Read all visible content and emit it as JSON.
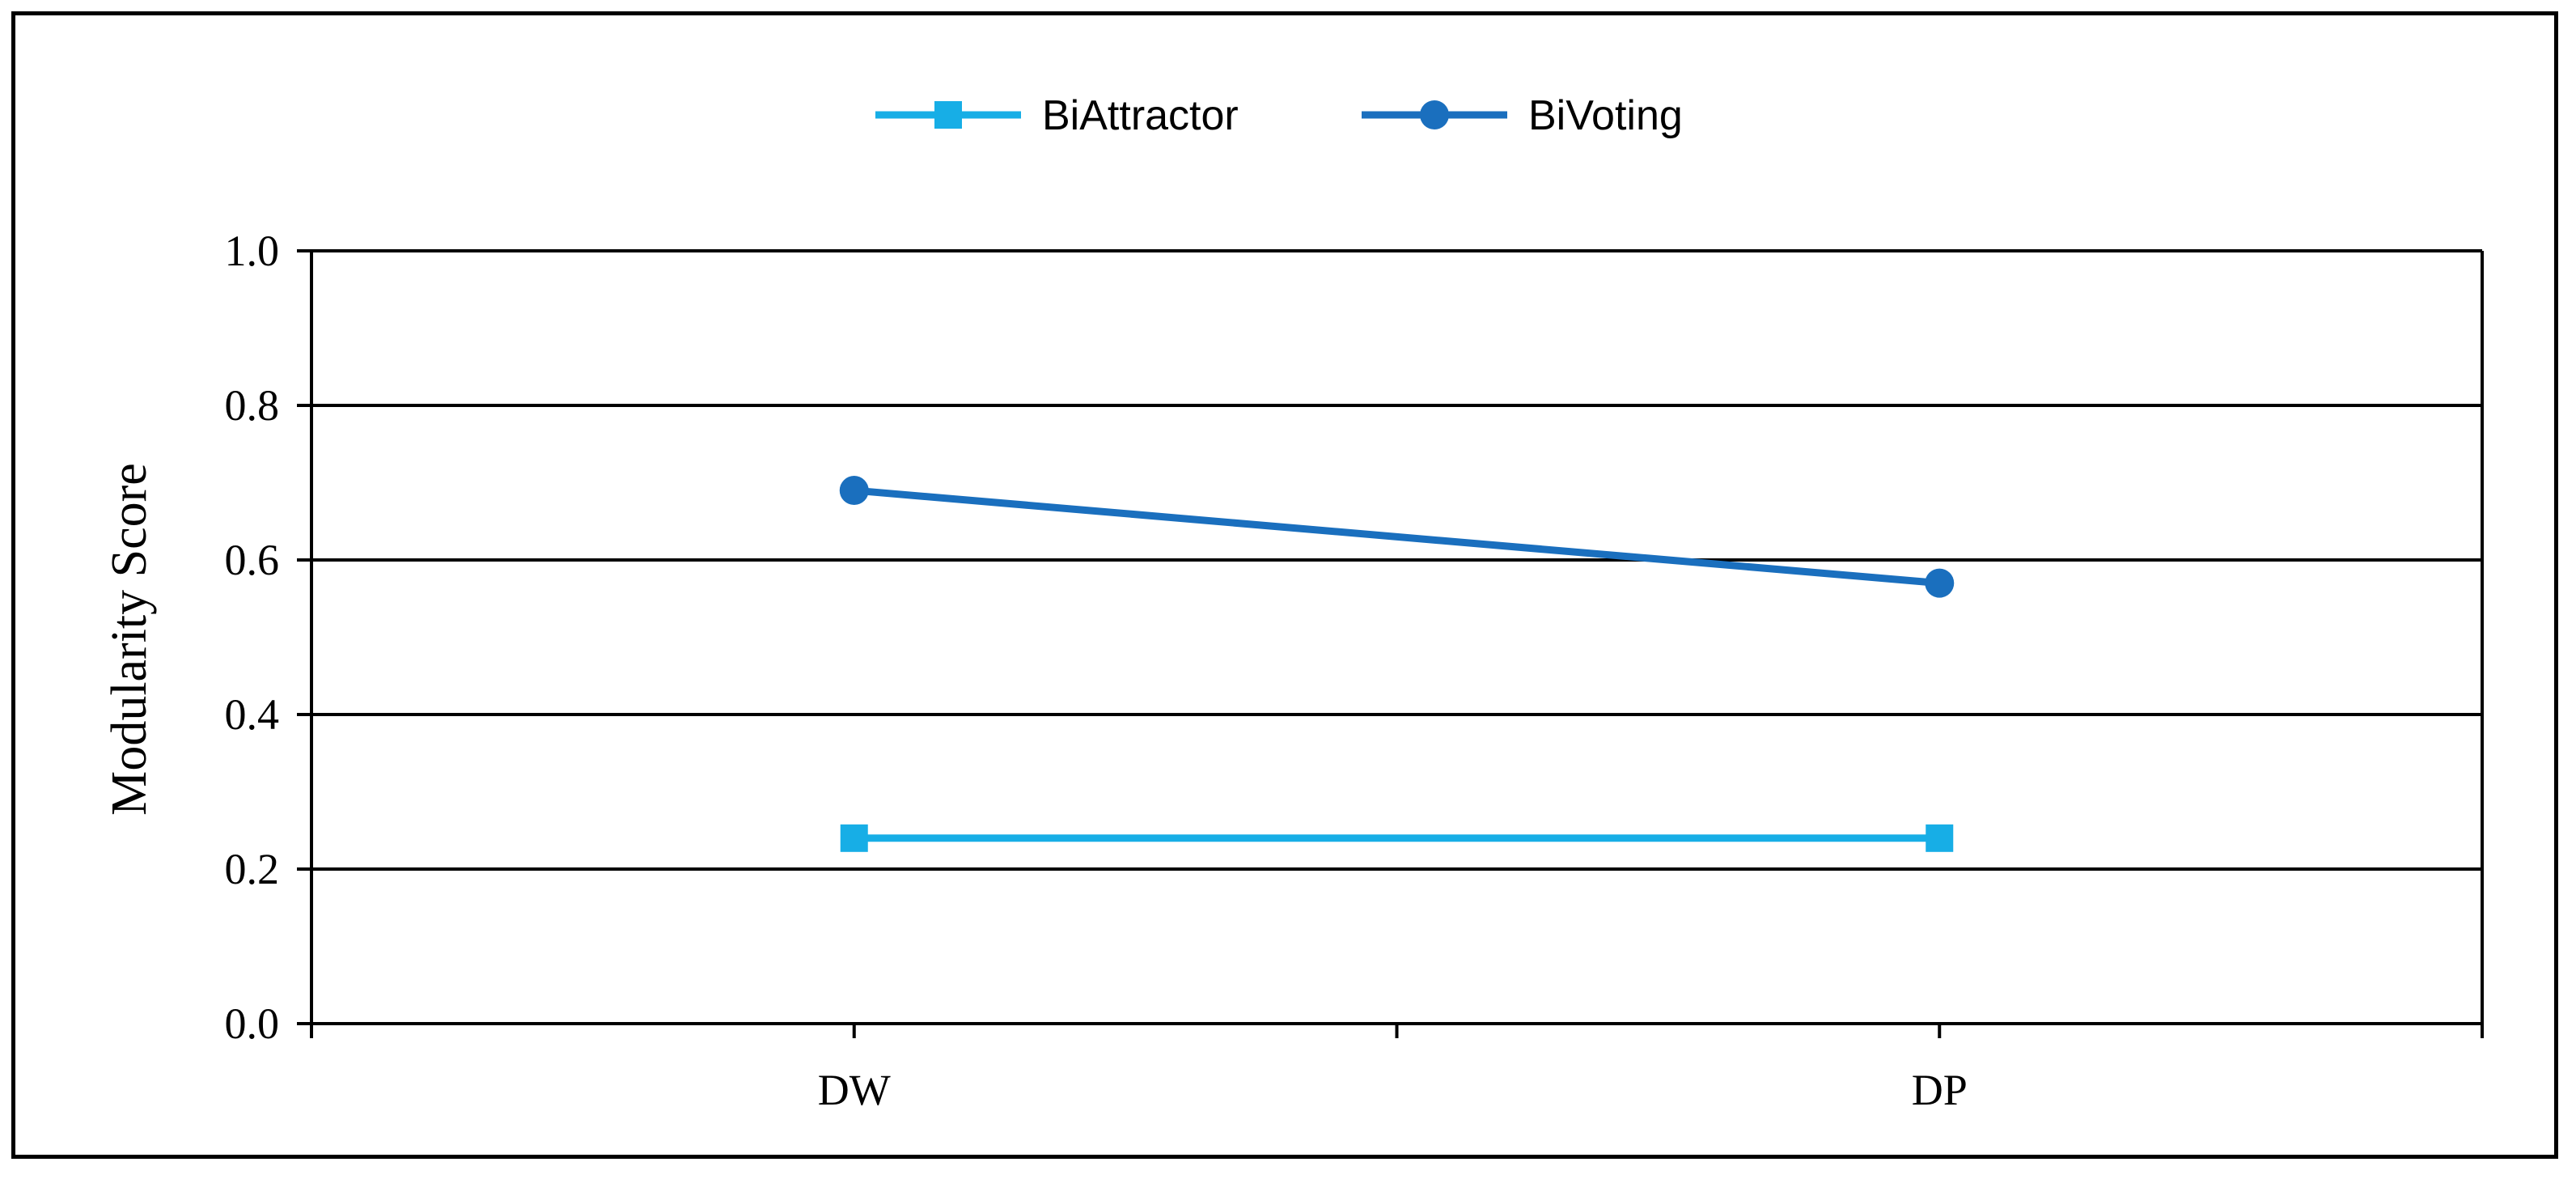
{
  "chart_data": {
    "type": "line",
    "categories": [
      "DW",
      "DP"
    ],
    "series": [
      {
        "name": "BiAttractor",
        "values": [
          0.24,
          0.24
        ],
        "color": "#17aee6",
        "marker": "square"
      },
      {
        "name": "BiVoting",
        "values": [
          0.69,
          0.57
        ],
        "color": "#1a6fbe",
        "marker": "circle"
      }
    ],
    "xlabel": "",
    "ylabel": "Modularity Score",
    "ylim": [
      0,
      1.0
    ],
    "yticks": [
      "0.0",
      "0.2",
      "0.4",
      "0.6",
      "0.8",
      "1.0"
    ],
    "grid": true,
    "legend": "top-center"
  }
}
